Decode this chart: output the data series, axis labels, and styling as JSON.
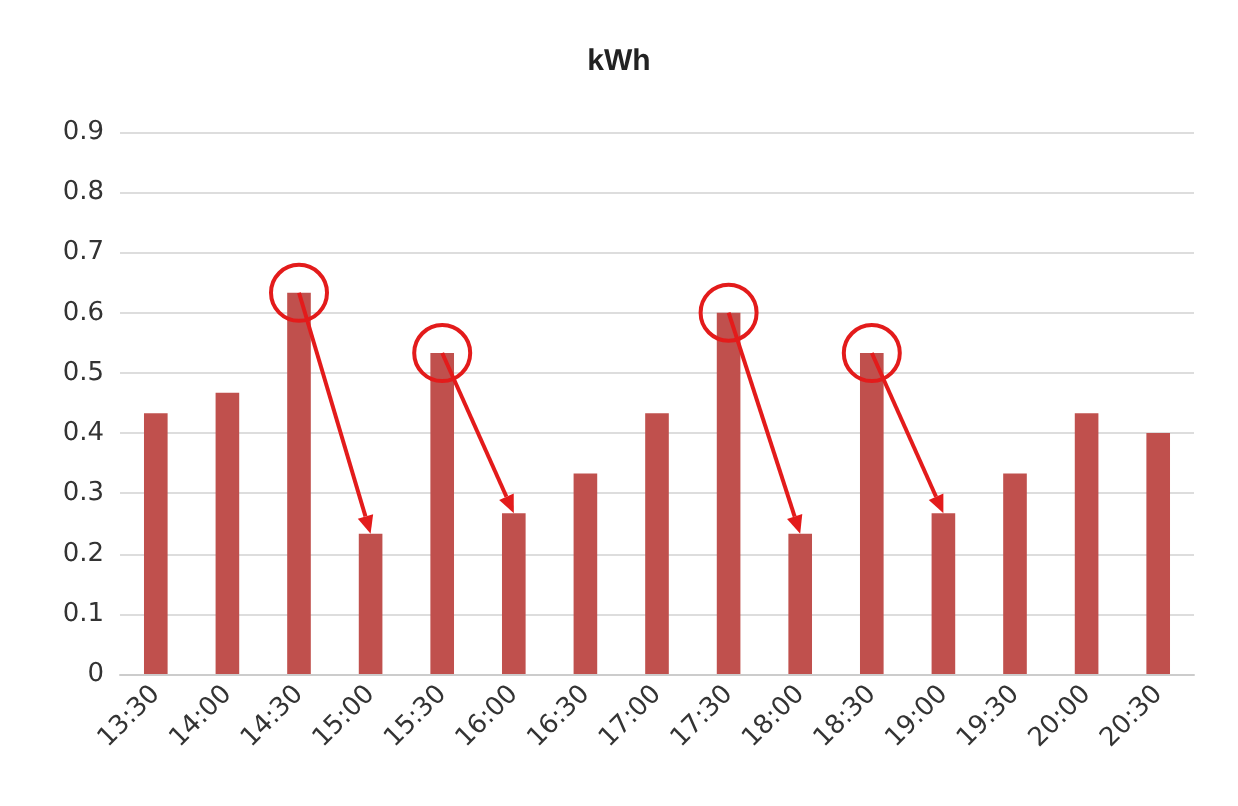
{
  "chart_data": {
    "type": "bar",
    "title": "kWh",
    "categories": [
      "13:30",
      "14:00",
      "14:30",
      "15:00",
      "15:30",
      "16:00",
      "16:30",
      "17:00",
      "17:30",
      "18:00",
      "18:30",
      "19:00",
      "19:30",
      "20:00",
      "20:30"
    ],
    "values": [
      0.433,
      0.467,
      0.633,
      0.233,
      0.533,
      0.267,
      0.333,
      0.433,
      0.6,
      0.233,
      0.533,
      0.267,
      0.333,
      0.433,
      0.4
    ],
    "color": "#c0504d",
    "ylim": [
      0,
      0.9
    ],
    "yticks": [
      0,
      0.1,
      0.2,
      0.3,
      0.4,
      0.5,
      0.6,
      0.7,
      0.8,
      0.9
    ],
    "grid": "y"
  }
}
